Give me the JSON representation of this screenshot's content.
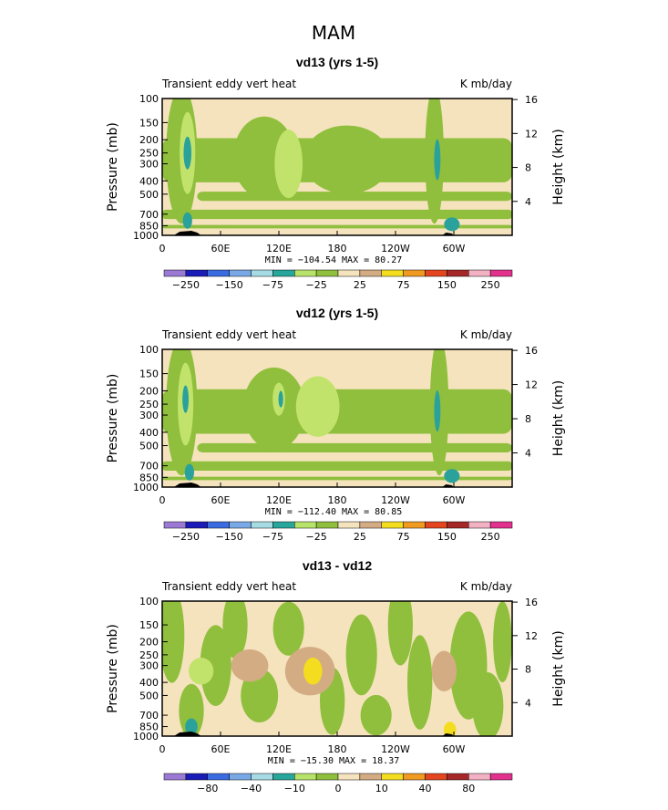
{
  "figure_title": "MAM",
  "chart_data": [
    {
      "type": "heatmap",
      "title": "vd13 (yrs 1-5)",
      "left_label": "Transient eddy vert heat",
      "right_label": "K mb/day",
      "ylabel": "Pressure (mb)",
      "y2label": "Height (km)",
      "pressure_ticks": [
        "100",
        "150",
        "200",
        "250",
        "300",
        "400",
        "500",
        "700",
        "850",
        "1000"
      ],
      "height_ticks": [
        "16",
        "12",
        "8",
        "4"
      ],
      "lon_ticks": [
        "0",
        "60E",
        "120E",
        "180",
        "120W",
        "60W"
      ],
      "stats": "MIN = −104.54   MAX =  80.27",
      "colorbar_labels": [
        "−250",
        "−150",
        "−75",
        "−25",
        "25",
        "75",
        "150",
        "250"
      ]
    },
    {
      "type": "heatmap",
      "title": "vd12 (yrs 1-5)",
      "left_label": "Transient eddy vert heat",
      "right_label": "K mb/day",
      "ylabel": "Pressure (mb)",
      "y2label": "Height (km)",
      "pressure_ticks": [
        "100",
        "150",
        "200",
        "250",
        "300",
        "400",
        "500",
        "700",
        "850",
        "1000"
      ],
      "height_ticks": [
        "16",
        "12",
        "8",
        "4"
      ],
      "lon_ticks": [
        "0",
        "60E",
        "120E",
        "180",
        "120W",
        "60W"
      ],
      "stats": "MIN = −112.40   MAX =  80.85",
      "colorbar_labels": [
        "−250",
        "−150",
        "−75",
        "−25",
        "25",
        "75",
        "150",
        "250"
      ]
    },
    {
      "type": "heatmap",
      "title": "vd13 - vd12",
      "left_label": "Transient eddy vert heat",
      "right_label": "K mb/day",
      "ylabel": "Pressure (mb)",
      "y2label": "Height (km)",
      "pressure_ticks": [
        "100",
        "150",
        "200",
        "250",
        "300",
        "400",
        "500",
        "700",
        "850",
        "1000"
      ],
      "height_ticks": [
        "16",
        "12",
        "8",
        "4"
      ],
      "lon_ticks": [
        "0",
        "60E",
        "120E",
        "180",
        "120W",
        "60W"
      ],
      "stats": "MIN = −15.30   MAX =  18.37",
      "colorbar_labels": [
        "−80",
        "−40",
        "−10",
        "0",
        "10",
        "40",
        "80"
      ]
    }
  ],
  "colors": {
    "background_field": "#f5e3bd",
    "green": "#8fbf3c",
    "light_green": "#c2e36b",
    "teal": "#2aa19a",
    "cyan": "#9fd6e0",
    "tan": "#d4ac84",
    "yellow": "#f4dd1f",
    "topography": "#000000",
    "palette": [
      "#9b7ad6",
      "#1b1bb8",
      "#3a6be0",
      "#78a8e6",
      "#a6dbe3",
      "#27a79c",
      "#b8e36a",
      "#8fbf3c",
      "#f5e3bd",
      "#d4ac84",
      "#f4dd1f",
      "#f09a22",
      "#e3461e",
      "#a52727",
      "#f2b2c4",
      "#e3318e"
    ]
  }
}
